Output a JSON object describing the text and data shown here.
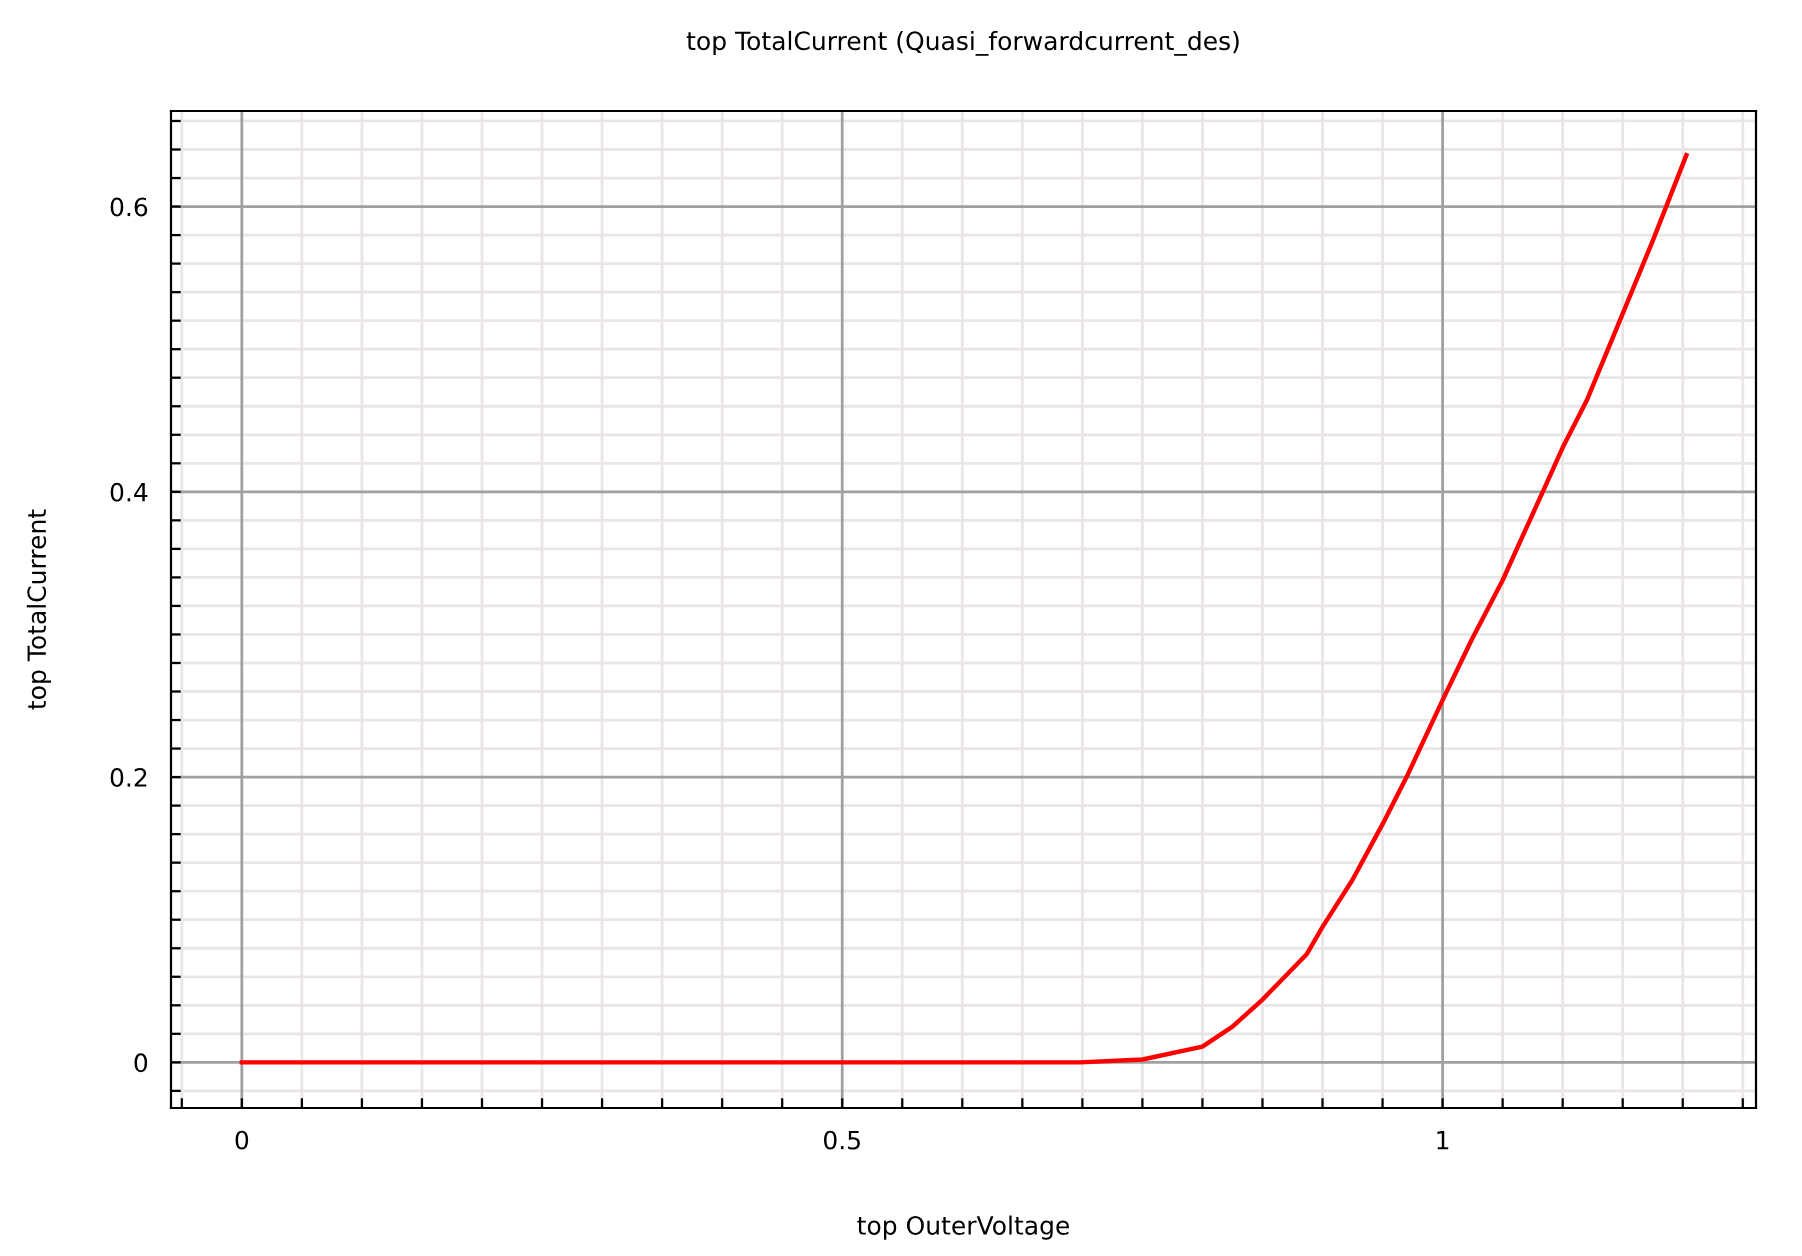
{
  "chart_data": {
    "type": "line",
    "title": "top TotalCurrent (Quasi_forwardcurrent_des)",
    "xlabel": "top OuterVoltage",
    "ylabel": "top TotalCurrent",
    "x": [
      0,
      0.1,
      0.2,
      0.3,
      0.4,
      0.5,
      0.6,
      0.698,
      0.75,
      0.8,
      0.825,
      0.85,
      0.887,
      0.9,
      0.925,
      0.95,
      0.97,
      1.0,
      1.024,
      1.05,
      1.085,
      1.1,
      1.12,
      1.15,
      1.175,
      1.203
    ],
    "series": [
      {
        "color": "#ff0000",
        "values": [
          0,
          0,
          0,
          0,
          0,
          0,
          0,
          0,
          0.002,
          0.011,
          0.025,
          0.044,
          0.076,
          0.095,
          0.128,
          0.167,
          0.2,
          0.254,
          0.296,
          0.338,
          0.403,
          0.431,
          0.464,
          0.525,
          0.576,
          0.636
        ]
      }
    ],
    "xlim": [
      -0.059,
      1.261
    ],
    "ylim": [
      -0.032,
      0.667
    ],
    "xticks": [
      {
        "value": -0.05,
        "label": null
      },
      0,
      {
        "value": 0.05,
        "label": null
      },
      {
        "value": 0.1,
        "label": null
      },
      {
        "value": 0.15,
        "label": null
      },
      {
        "value": 0.2,
        "label": null
      },
      {
        "value": 0.25,
        "label": null
      },
      {
        "value": 0.3,
        "label": null
      },
      {
        "value": 0.35,
        "label": null
      },
      {
        "value": 0.4,
        "label": null
      },
      {
        "value": 0.45,
        "label": null
      },
      0.5,
      {
        "value": 0.55,
        "label": null
      },
      {
        "value": 0.6,
        "label": null
      },
      {
        "value": 0.65,
        "label": null
      },
      {
        "value": 0.7,
        "label": null
      },
      {
        "value": 0.75,
        "label": null
      },
      {
        "value": 0.8,
        "label": null
      },
      {
        "value": 0.85,
        "label": null
      },
      {
        "value": 0.9,
        "label": null
      },
      {
        "value": 0.95,
        "label": null
      },
      1,
      {
        "value": 1.05,
        "label": null
      },
      {
        "value": 1.1,
        "label": null
      },
      {
        "value": 1.15,
        "label": null
      },
      {
        "value": 1.2,
        "label": null
      },
      {
        "value": 1.25,
        "label": null
      }
    ],
    "yticks": [
      {
        "value": -0.02,
        "label": null
      },
      0,
      {
        "value": 0.02,
        "label": null
      },
      {
        "value": 0.04,
        "label": null
      },
      {
        "value": 0.06,
        "label": null
      },
      {
        "value": 0.08,
        "label": null
      },
      {
        "value": 0.1,
        "label": null
      },
      {
        "value": 0.12,
        "label": null
      },
      {
        "value": 0.14,
        "label": null
      },
      {
        "value": 0.16,
        "label": null
      },
      {
        "value": 0.18,
        "label": null
      },
      0.2,
      {
        "value": 0.22,
        "label": null
      },
      {
        "value": 0.24,
        "label": null
      },
      {
        "value": 0.26,
        "label": null
      },
      {
        "value": 0.28,
        "label": null
      },
      {
        "value": 0.3,
        "label": null
      },
      {
        "value": 0.32,
        "label": null
      },
      {
        "value": 0.34,
        "label": null
      },
      {
        "value": 0.36,
        "label": null
      },
      {
        "value": 0.38,
        "label": null
      },
      0.4,
      {
        "value": 0.42,
        "label": null
      },
      {
        "value": 0.44,
        "label": null
      },
      {
        "value": 0.46,
        "label": null
      },
      {
        "value": 0.48,
        "label": null
      },
      {
        "value": 0.5,
        "label": null
      },
      {
        "value": 0.52,
        "label": null
      },
      {
        "value": 0.54,
        "label": null
      },
      {
        "value": 0.56,
        "label": null
      },
      {
        "value": 0.58,
        "label": null
      },
      0.6,
      {
        "value": 0.62,
        "label": null
      },
      {
        "value": 0.64,
        "label": null
      },
      {
        "value": 0.66,
        "label": null
      }
    ],
    "grid": true,
    "marker": "none",
    "line_style": "solid"
  }
}
